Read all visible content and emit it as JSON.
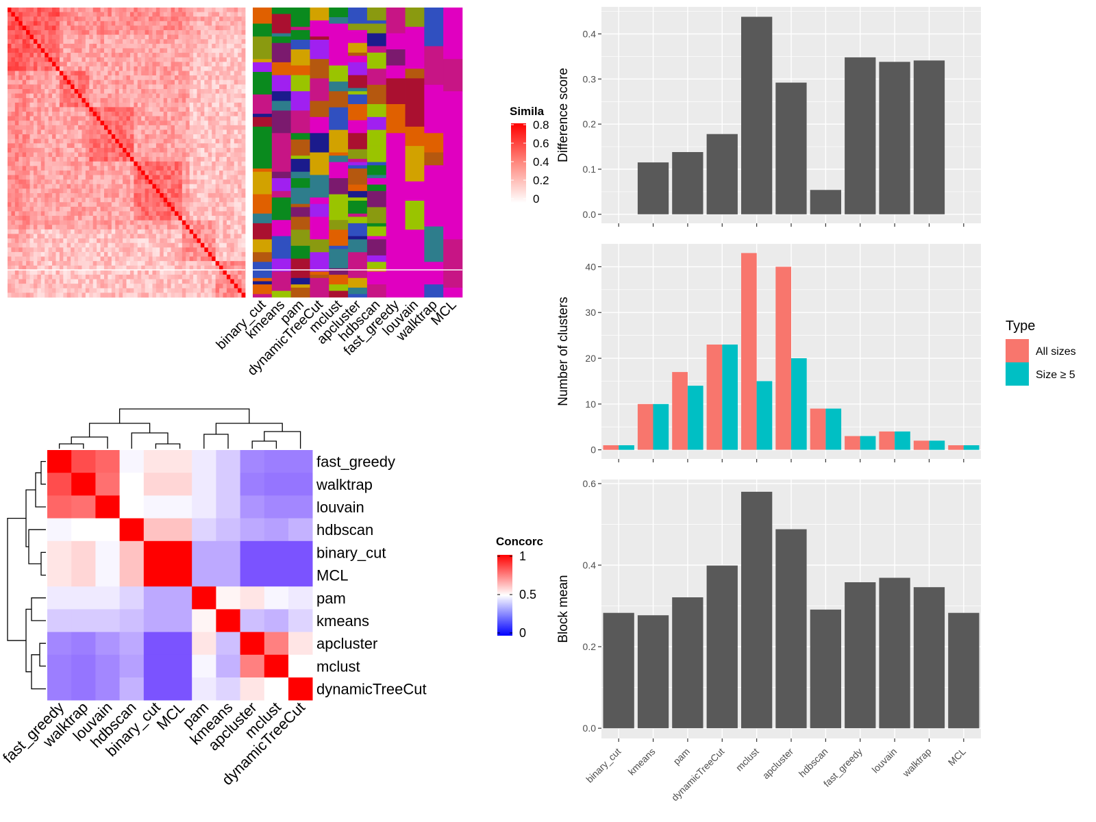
{
  "colors": {
    "panel_bg": "#EBEBEB",
    "grid": "#FFFFFF",
    "bar_grey": "#595959",
    "all_sizes": "#F8766D",
    "size_ge5": "#00BFC4",
    "heat_red": "#FF0000",
    "heat_white": "#FFFFFF",
    "heat_blue": "#0000FF",
    "magenta_bg": "#E000C0"
  },
  "methods": [
    "binary_cut",
    "kmeans",
    "pam",
    "dynamicTreeCut",
    "mclust",
    "apcluster",
    "hdbscan",
    "fast_greedy",
    "louvain",
    "walktrap",
    "MCL"
  ],
  "similarity_legend": {
    "title": "Simila",
    "ticks": [
      "0.8",
      "0.6",
      "0.4",
      "0.2",
      "0"
    ]
  },
  "concordance": {
    "legend_title": "Concorc",
    "legend_ticks": [
      "1",
      "0.5",
      "0"
    ],
    "order": [
      "fast_greedy",
      "walktrap",
      "louvain",
      "hdbscan",
      "binary_cut",
      "MCL",
      "pam",
      "kmeans",
      "apcluster",
      "mclust",
      "dynamicTreeCut"
    ],
    "matrix": [
      [
        1.0,
        0.85,
        0.8,
        0.48,
        0.55,
        0.55,
        0.45,
        0.38,
        0.22,
        0.2,
        0.2
      ],
      [
        0.85,
        1.0,
        0.78,
        0.5,
        0.58,
        0.58,
        0.45,
        0.38,
        0.2,
        0.18,
        0.18
      ],
      [
        0.8,
        0.78,
        1.0,
        0.5,
        0.48,
        0.48,
        0.45,
        0.38,
        0.25,
        0.22,
        0.22
      ],
      [
        0.48,
        0.5,
        0.5,
        1.0,
        0.62,
        0.62,
        0.4,
        0.35,
        0.3,
        0.28,
        0.32
      ],
      [
        0.55,
        0.58,
        0.48,
        0.62,
        1.0,
        1.0,
        0.3,
        0.3,
        0.1,
        0.1,
        0.1
      ],
      [
        0.55,
        0.58,
        0.48,
        0.62,
        1.0,
        1.0,
        0.3,
        0.3,
        0.1,
        0.1,
        0.1
      ],
      [
        0.45,
        0.45,
        0.45,
        0.4,
        0.3,
        0.3,
        1.0,
        0.52,
        0.55,
        0.48,
        0.45
      ],
      [
        0.38,
        0.38,
        0.38,
        0.35,
        0.3,
        0.3,
        0.52,
        1.0,
        0.35,
        0.32,
        0.4
      ],
      [
        0.22,
        0.2,
        0.25,
        0.3,
        0.1,
        0.1,
        0.55,
        0.35,
        1.0,
        0.75,
        0.55
      ],
      [
        0.2,
        0.18,
        0.22,
        0.28,
        0.1,
        0.1,
        0.48,
        0.32,
        0.75,
        1.0,
        0.5
      ],
      [
        0.2,
        0.18,
        0.22,
        0.32,
        0.1,
        0.1,
        0.45,
        0.4,
        0.55,
        0.5,
        1.0
      ]
    ]
  },
  "chart_data": [
    {
      "type": "bar",
      "categories": [
        "binary_cut",
        "kmeans",
        "pam",
        "dynamicTreeCut",
        "mclust",
        "apcluster",
        "hdbscan",
        "fast_greedy",
        "louvain",
        "walktrap",
        "MCL"
      ],
      "values": [
        0,
        0.115,
        0.138,
        0.178,
        0.438,
        0.292,
        0.054,
        0.348,
        0.338,
        0.341,
        0
      ],
      "ylabel": "Difference score",
      "ylim": [
        -0.02,
        0.46
      ],
      "yticks": [
        "0.0",
        "0.1",
        "0.2",
        "0.3",
        "0.4"
      ],
      "grid": true
    },
    {
      "type": "bar",
      "categories": [
        "binary_cut",
        "kmeans",
        "pam",
        "dynamicTreeCut",
        "mclust",
        "apcluster",
        "hdbscan",
        "fast_greedy",
        "louvain",
        "walktrap",
        "MCL"
      ],
      "series": [
        {
          "name": "All sizes",
          "values": [
            1,
            10,
            17,
            23,
            43,
            40,
            9,
            3,
            4,
            2,
            1
          ]
        },
        {
          "name": "Size ≥ 5",
          "values": [
            1,
            10,
            14,
            23,
            15,
            20,
            9,
            3,
            4,
            2,
            1
          ]
        }
      ],
      "ylabel": "Number of clusters",
      "ylim": [
        -2,
        45
      ],
      "yticks": [
        "0",
        "10",
        "20",
        "30",
        "40"
      ],
      "legend_title": "Type",
      "legend_position": "right",
      "grid": true
    },
    {
      "type": "bar",
      "categories": [
        "binary_cut",
        "kmeans",
        "pam",
        "dynamicTreeCut",
        "mclust",
        "apcluster",
        "hdbscan",
        "fast_greedy",
        "louvain",
        "walktrap",
        "MCL"
      ],
      "values": [
        0.283,
        0.277,
        0.321,
        0.399,
        0.58,
        0.488,
        0.291,
        0.358,
        0.369,
        0.346,
        0.283
      ],
      "ylabel": "Block mean",
      "ylim": [
        -0.025,
        0.61
      ],
      "yticks": [
        "0.0",
        "0.2",
        "0.4",
        "0.6"
      ],
      "grid": true
    }
  ]
}
